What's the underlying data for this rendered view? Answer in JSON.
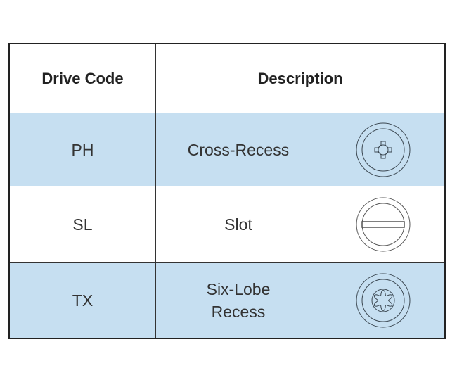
{
  "header": {
    "drive_code": "Drive Code",
    "description": "Description"
  },
  "rows": [
    {
      "code": "PH",
      "description": "Cross-Recess",
      "icon": "phillips-drive-icon",
      "shaded": true
    },
    {
      "code": "SL",
      "description": "Slot",
      "icon": "slot-drive-icon",
      "shaded": false
    },
    {
      "code": "TX",
      "description": "Six-Lobe Recess",
      "icon": "torx-drive-icon",
      "shaded": true
    }
  ],
  "colors": {
    "row_shade": "#c6dff1",
    "border": "#222222"
  }
}
